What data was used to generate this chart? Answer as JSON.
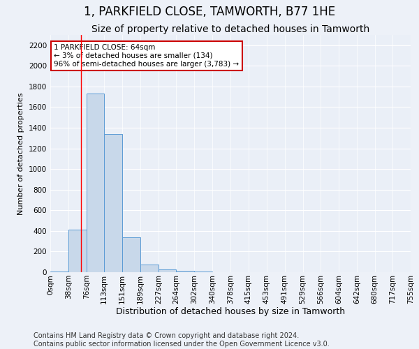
{
  "title": "1, PARKFIELD CLOSE, TAMWORTH, B77 1HE",
  "subtitle": "Size of property relative to detached houses in Tamworth",
  "xlabel": "Distribution of detached houses by size in Tamworth",
  "ylabel": "Number of detached properties",
  "bar_color": "#c8d8ea",
  "bar_edge_color": "#5b9bd5",
  "background_color": "#eaeff7",
  "grid_color": "#ffffff",
  "annotation_text": "1 PARKFIELD CLOSE: 64sqm\n← 3% of detached houses are smaller (134)\n96% of semi-detached houses are larger (3,783) →",
  "annotation_box_color": "#ffffff",
  "annotation_box_edge_color": "#cc0000",
  "property_line_x": 64,
  "ylim": [
    0,
    2300
  ],
  "yticks": [
    0,
    200,
    400,
    600,
    800,
    1000,
    1200,
    1400,
    1600,
    1800,
    2000,
    2200
  ],
  "bin_edges": [
    0,
    38,
    76,
    113,
    151,
    189,
    227,
    264,
    302,
    340,
    378,
    415,
    453,
    491,
    529,
    566,
    604,
    642,
    680,
    717,
    755
  ],
  "bin_labels": [
    "0sqm",
    "38sqm",
    "76sqm",
    "113sqm",
    "151sqm",
    "189sqm",
    "227sqm",
    "264sqm",
    "302sqm",
    "340sqm",
    "378sqm",
    "415sqm",
    "453sqm",
    "491sqm",
    "529sqm",
    "566sqm",
    "604sqm",
    "642sqm",
    "680sqm",
    "717sqm",
    "755sqm"
  ],
  "bar_heights": [
    10,
    410,
    1730,
    1340,
    340,
    75,
    30,
    15,
    5,
    2,
    1,
    0,
    0,
    0,
    0,
    0,
    0,
    0,
    0,
    0
  ],
  "footer_text": "Contains HM Land Registry data © Crown copyright and database right 2024.\nContains public sector information licensed under the Open Government Licence v3.0.",
  "title_fontsize": 12,
  "subtitle_fontsize": 10,
  "xlabel_fontsize": 9,
  "ylabel_fontsize": 8,
  "tick_fontsize": 7.5,
  "footer_fontsize": 7,
  "fig_width": 6.0,
  "fig_height": 5.0,
  "fig_dpi": 100
}
